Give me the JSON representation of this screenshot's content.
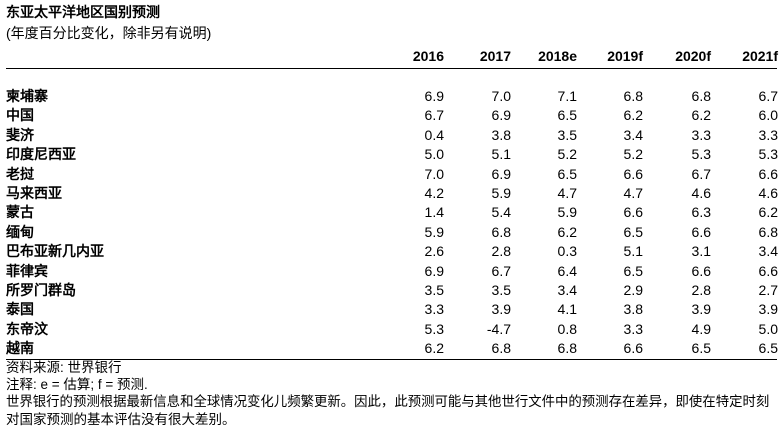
{
  "title": "东亚太平洋地区国别预测",
  "subtitle": "(年度百分比变化，除非另有说明)",
  "table": {
    "columns": [
      "2016",
      "2017",
      "2018e",
      "2019f",
      "2020f",
      "2021f"
    ],
    "rows": [
      [
        "柬埔寨",
        "6.9",
        "7.0",
        "7.1",
        "6.8",
        "6.8",
        "6.7"
      ],
      [
        "中国",
        "6.7",
        "6.9",
        "6.5",
        "6.2",
        "6.2",
        "6.0"
      ],
      [
        "斐济",
        "0.4",
        "3.8",
        "3.5",
        "3.4",
        "3.3",
        "3.3"
      ],
      [
        "印度尼西亚",
        "5.0",
        "5.1",
        "5.2",
        "5.2",
        "5.3",
        "5.3"
      ],
      [
        "老挝",
        "7.0",
        "6.9",
        "6.5",
        "6.6",
        "6.7",
        "6.6"
      ],
      [
        "马来西亚",
        "4.2",
        "5.9",
        "4.7",
        "4.7",
        "4.6",
        "4.6"
      ],
      [
        "蒙古",
        "1.4",
        "5.4",
        "5.9",
        "6.6",
        "6.3",
        "6.2"
      ],
      [
        "缅甸",
        "5.9",
        "6.8",
        "6.2",
        "6.5",
        "6.6",
        "6.8"
      ],
      [
        "巴布亚新几内亚",
        "2.6",
        "2.8",
        "0.3",
        "5.1",
        "3.1",
        "3.4"
      ],
      [
        "菲律宾",
        "6.9",
        "6.7",
        "6.4",
        "6.5",
        "6.6",
        "6.6"
      ],
      [
        "所罗门群岛",
        "3.5",
        "3.5",
        "3.4",
        "2.9",
        "2.8",
        "2.7"
      ],
      [
        "泰国",
        "3.3",
        "3.9",
        "4.1",
        "3.8",
        "3.9",
        "3.9"
      ],
      [
        "东帝汶",
        "5.3",
        "-4.7",
        "0.8",
        "3.3",
        "4.9",
        "5.0"
      ],
      [
        "越南",
        "6.2",
        "6.8",
        "6.8",
        "6.6",
        "6.5",
        "6.5"
      ]
    ]
  },
  "notes": [
    "资料来源: 世界银行",
    "注释: e = 估算; f = 预测.",
    "世界银行的预测根据最新信息和全球情况变化儿频繁更新。因此，此预测可能与其他世行文件中的预测存在差异，即使在特定时刻",
    "对国家预测的基本评估没有很大差别。"
  ]
}
